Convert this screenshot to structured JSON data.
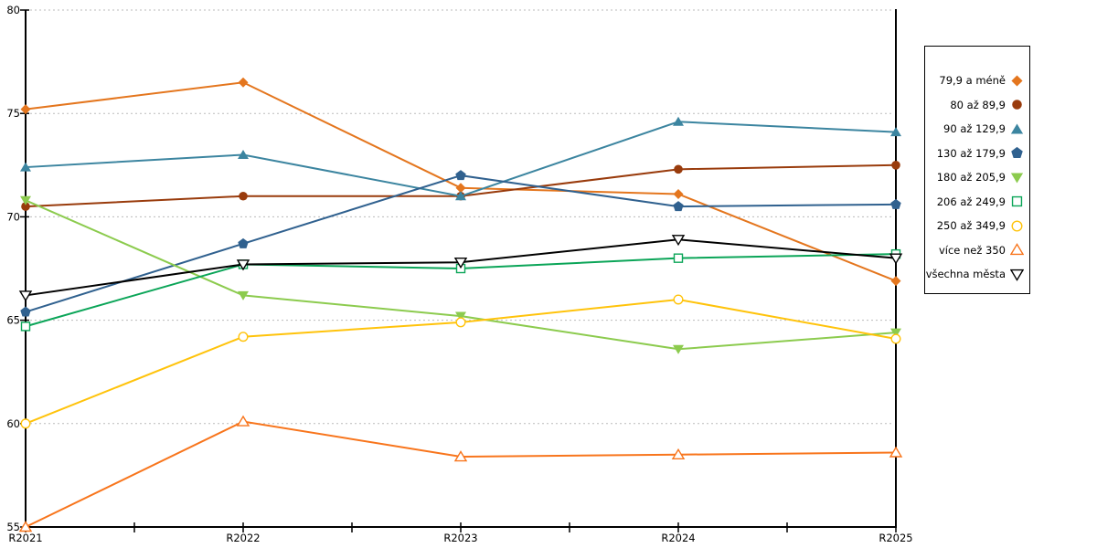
{
  "chart_data": {
    "type": "line",
    "title": "",
    "xlabel": "",
    "ylabel": "",
    "categories": [
      "R2021",
      "R2022",
      "R2023",
      "R2024",
      "R2025"
    ],
    "ylim": [
      55,
      80
    ],
    "yticks": [
      55,
      60,
      65,
      70,
      75,
      80
    ],
    "grid": "dashed-horizontal",
    "legend_position": "right-box",
    "series": [
      {
        "name": "79,9 a méně",
        "color": "#E4761E",
        "marker": "diamond",
        "filled": true,
        "values": [
          75.2,
          76.5,
          71.4,
          71.1,
          66.9
        ]
      },
      {
        "name": "80 až 89,9",
        "color": "#993B0C",
        "marker": "circle",
        "filled": true,
        "values": [
          70.5,
          71.0,
          71.0,
          72.3,
          72.5
        ]
      },
      {
        "name": "90 až 129,9",
        "color": "#3C85A0",
        "marker": "triangle-up",
        "filled": true,
        "values": [
          72.4,
          73.0,
          71.0,
          74.6,
          74.1
        ]
      },
      {
        "name": "130 až 179,9",
        "color": "#30618F",
        "marker": "pentagon",
        "filled": true,
        "values": [
          65.4,
          68.7,
          72.0,
          70.5,
          70.6
        ]
      },
      {
        "name": "180 až 205,9",
        "color": "#8CCB4E",
        "marker": "triangle-down",
        "filled": true,
        "values": [
          70.8,
          66.2,
          65.2,
          63.6,
          64.4
        ]
      },
      {
        "name": "206 až 249,9",
        "color": "#0BA558",
        "marker": "square",
        "filled": false,
        "values": [
          64.7,
          67.7,
          67.5,
          68.0,
          68.2
        ]
      },
      {
        "name": "250 až 349,9",
        "color": "#FFC30B",
        "marker": "circle",
        "filled": false,
        "values": [
          60.0,
          64.2,
          64.9,
          66.0,
          64.1
        ]
      },
      {
        "name": "více než 350",
        "color": "#F8751C",
        "marker": "triangle-up",
        "filled": false,
        "values": [
          55.0,
          60.1,
          58.4,
          58.5,
          58.6
        ]
      },
      {
        "name": "všechna města",
        "color": "#000000",
        "marker": "triangle-down",
        "filled": false,
        "values": [
          66.2,
          67.7,
          67.8,
          68.9,
          68.0
        ]
      }
    ]
  },
  "colors": {
    "background": "#ffffff",
    "axis": "#000000",
    "grid": "#bbbbbb",
    "legend_border": "#000000"
  }
}
